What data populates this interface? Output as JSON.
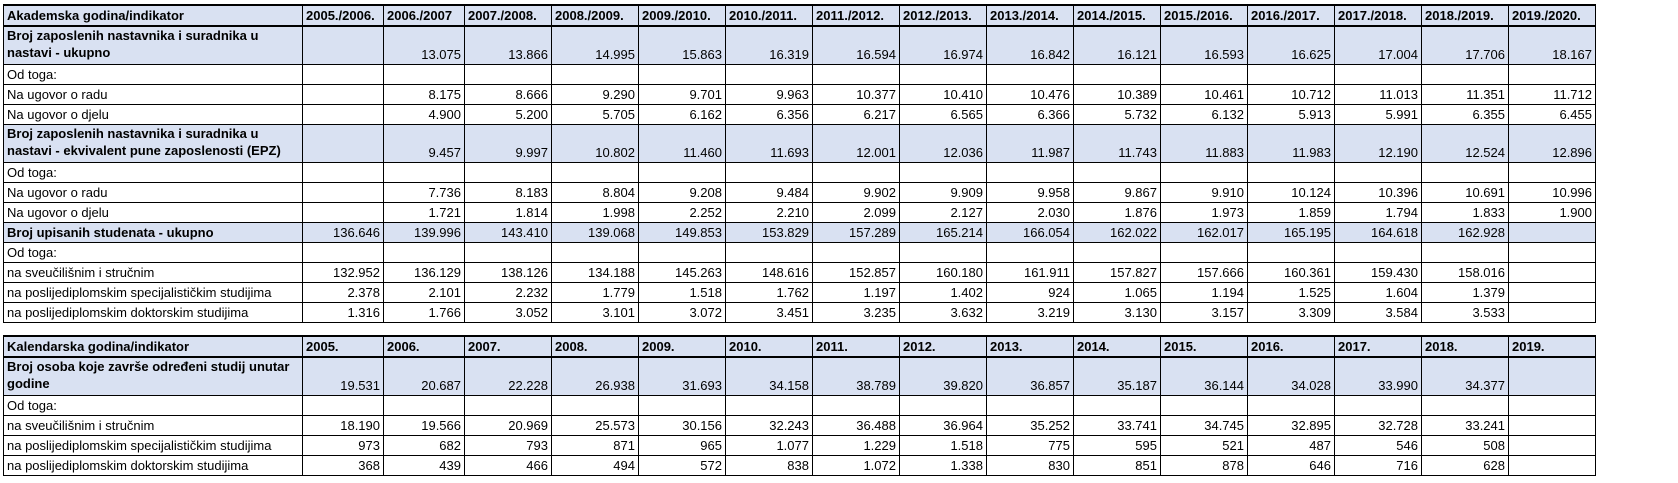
{
  "section1": {
    "header": [
      "Akademska godina/indikator",
      "2005./2006.",
      "2006./2007",
      "2007./2008.",
      "2008./2009.",
      "2009./2010.",
      "2010./2011.",
      "2011./2012.",
      "2012./2013.",
      "2013./2014.",
      "2014./2015.",
      "2015./2016.",
      "2016./2017.",
      "2017./2018.",
      "2018./2019.",
      "2019./2020."
    ],
    "rows": [
      {
        "style": "hi tall",
        "cells": [
          "Broj zaposlenih nastavnika i suradnika u nastavi - ukupno",
          "",
          "13.075",
          "13.866",
          "14.995",
          "15.863",
          "16.319",
          "16.594",
          "16.974",
          "16.842",
          "16.121",
          "16.593",
          "16.625",
          "17.004",
          "17.706",
          "18.167"
        ]
      },
      {
        "style": "",
        "cells": [
          "Od toga:",
          "",
          "",
          "",
          "",
          "",
          "",
          "",
          "",
          "",
          "",
          "",
          "",
          "",
          "",
          ""
        ]
      },
      {
        "style": "",
        "cells": [
          "Na ugovor o radu",
          "",
          "8.175",
          "8.666",
          "9.290",
          "9.701",
          "9.963",
          "10.377",
          "10.410",
          "10.476",
          "10.389",
          "10.461",
          "10.712",
          "11.013",
          "11.351",
          "11.712"
        ]
      },
      {
        "style": "",
        "cells": [
          "Na ugovor o djelu",
          "",
          "4.900",
          "5.200",
          "5.705",
          "6.162",
          "6.356",
          "6.217",
          "6.565",
          "6.366",
          "5.732",
          "6.132",
          "5.913",
          "5.991",
          "6.355",
          "6.455"
        ]
      },
      {
        "style": "hi tall",
        "cells": [
          "Broj zaposlenih nastavnika i suradnika u nastavi - ekvivalent pune zaposlenosti (EPZ)",
          "",
          "9.457",
          "9.997",
          "10.802",
          "11.460",
          "11.693",
          "12.001",
          "12.036",
          "11.987",
          "11.743",
          "11.883",
          "11.983",
          "12.190",
          "12.524",
          "12.896"
        ]
      },
      {
        "style": "",
        "cells": [
          "Od toga:",
          "",
          "",
          "",
          "",
          "",
          "",
          "",
          "",
          "",
          "",
          "",
          "",
          "",
          "",
          ""
        ]
      },
      {
        "style": "",
        "cells": [
          "Na ugovor o radu",
          "",
          "7.736",
          "8.183",
          "8.804",
          "9.208",
          "9.484",
          "9.902",
          "9.909",
          "9.958",
          "9.867",
          "9.910",
          "10.124",
          "10.396",
          "10.691",
          "10.996"
        ]
      },
      {
        "style": "",
        "cells": [
          "Na ugovor o djelu",
          "",
          "1.721",
          "1.814",
          "1.998",
          "2.252",
          "2.210",
          "2.099",
          "2.127",
          "2.030",
          "1.876",
          "1.973",
          "1.859",
          "1.794",
          "1.833",
          "1.900"
        ]
      },
      {
        "style": "hi",
        "cells": [
          "Broj upisanih studenata - ukupno",
          "136.646",
          "139.996",
          "143.410",
          "139.068",
          "149.853",
          "153.829",
          "157.289",
          "165.214",
          "166.054",
          "162.022",
          "162.017",
          "165.195",
          "164.618",
          "162.928",
          ""
        ]
      },
      {
        "style": "",
        "cells": [
          "Od toga:",
          "",
          "",
          "",
          "",
          "",
          "",
          "",
          "",
          "",
          "",
          "",
          "",
          "",
          "",
          ""
        ]
      },
      {
        "style": "",
        "cells": [
          "na sveučilišnim i stručnim",
          "132.952",
          "136.129",
          "138.126",
          "134.188",
          "145.263",
          "148.616",
          "152.857",
          "160.180",
          "161.911",
          "157.827",
          "157.666",
          "160.361",
          "159.430",
          "158.016",
          ""
        ]
      },
      {
        "style": "",
        "cells": [
          "na poslijediplomskim specijalističkim studijima",
          "2.378",
          "2.101",
          "2.232",
          "1.779",
          "1.518",
          "1.762",
          "1.197",
          "1.402",
          "924",
          "1.065",
          "1.194",
          "1.525",
          "1.604",
          "1.379",
          ""
        ]
      },
      {
        "style": "",
        "cells": [
          "na poslijediplomskim doktorskim studijima",
          "1.316",
          "1.766",
          "3.052",
          "3.101",
          "3.072",
          "3.451",
          "3.235",
          "3.632",
          "3.219",
          "3.130",
          "3.157",
          "3.309",
          "3.584",
          "3.533",
          ""
        ]
      }
    ]
  },
  "section2": {
    "header": [
      "Kalendarska godina/indikator",
      "2005.",
      "2006.",
      "2007.",
      "2008.",
      "2009.",
      "2010.",
      "2011.",
      "2012.",
      "2013.",
      "2014.",
      "2015.",
      "2016.",
      "2017.",
      "2018.",
      "2019."
    ],
    "rows": [
      {
        "style": "hi tall",
        "cells": [
          "Broj osoba koje završe određeni studij unutar godine",
          "19.531",
          "20.687",
          "22.228",
          "26.938",
          "31.693",
          "34.158",
          "38.789",
          "39.820",
          "36.857",
          "35.187",
          "36.144",
          "34.028",
          "33.990",
          "34.377",
          ""
        ]
      },
      {
        "style": "",
        "cells": [
          "Od toga:",
          "",
          "",
          "",
          "",
          "",
          "",
          "",
          "",
          "",
          "",
          "",
          "",
          "",
          "",
          ""
        ]
      },
      {
        "style": "",
        "cells": [
          "na sveučilišnim i stručnim",
          "18.190",
          "19.566",
          "20.969",
          "25.573",
          "30.156",
          "32.243",
          "36.488",
          "36.964",
          "35.252",
          "33.741",
          "34.745",
          "32.895",
          "32.728",
          "33.241",
          ""
        ]
      },
      {
        "style": "",
        "cells": [
          "na poslijediplomskim specijalističkim studijima",
          "973",
          "682",
          "793",
          "871",
          "965",
          "1.077",
          "1.229",
          "1.518",
          "775",
          "595",
          "521",
          "487",
          "546",
          "508",
          ""
        ]
      },
      {
        "style": "",
        "cells": [
          "na poslijediplomskim doktorskim studijima",
          "368",
          "439",
          "466",
          "494",
          "572",
          "838",
          "1.072",
          "1.338",
          "830",
          "851",
          "878",
          "646",
          "716",
          "628",
          ""
        ]
      }
    ]
  }
}
